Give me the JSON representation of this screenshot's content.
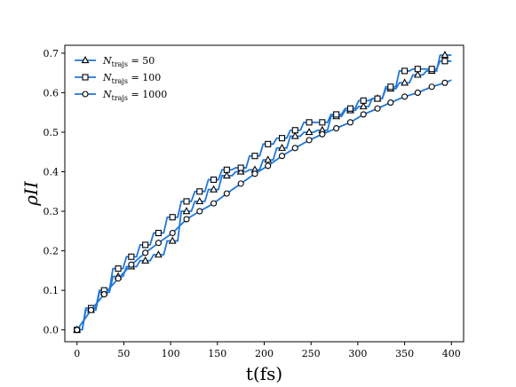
{
  "chart_data": {
    "type": "line",
    "title": "",
    "xlabel": "t(fs)",
    "ylabel": "ρII",
    "xlim": [
      -13,
      413
    ],
    "ylim": [
      -0.03,
      0.72
    ],
    "xticks": [
      0,
      50,
      100,
      150,
      200,
      250,
      300,
      350,
      400
    ],
    "yticks": [
      0.0,
      0.1,
      0.2,
      0.3,
      0.4,
      0.5,
      0.6,
      0.7
    ],
    "xtick_labels": [
      "0",
      "50",
      "100",
      "150",
      "200",
      "250",
      "300",
      "350",
      "400"
    ],
    "ytick_labels": [
      "0.0",
      "0.1",
      "0.2",
      "0.3",
      "0.4",
      "0.5",
      "0.6",
      "0.7"
    ],
    "grid": false,
    "legend_position": "top-left",
    "line_color": "#1f77d8",
    "series": [
      {
        "name": "Ntrajs = 50",
        "legend_label": "N",
        "legend_sub": "trajs",
        "legend_value": "= 50",
        "marker": "triangle",
        "x": [
          0,
          15,
          29,
          44,
          58,
          73,
          87,
          102,
          117,
          131,
          146,
          160,
          175,
          190,
          204,
          219,
          233,
          248,
          262,
          277,
          292,
          306,
          321,
          335,
          350,
          364,
          379,
          393
        ],
        "y": [
          0.0,
          0.05,
          0.095,
          0.135,
          0.16,
          0.175,
          0.19,
          0.225,
          0.3,
          0.325,
          0.355,
          0.39,
          0.4,
          0.405,
          0.43,
          0.46,
          0.49,
          0.5,
          0.505,
          0.54,
          0.555,
          0.565,
          0.585,
          0.61,
          0.625,
          0.645,
          0.655,
          0.695
        ]
      },
      {
        "name": "Ntrajs = 100",
        "legend_label": "N",
        "legend_sub": "trajs",
        "legend_value": "= 100",
        "marker": "square",
        "x": [
          0,
          15,
          29,
          44,
          58,
          73,
          87,
          102,
          117,
          131,
          146,
          160,
          175,
          190,
          204,
          219,
          233,
          248,
          262,
          277,
          292,
          306,
          321,
          335,
          350,
          364,
          379,
          393
        ],
        "y": [
          0.0,
          0.055,
          0.1,
          0.155,
          0.185,
          0.215,
          0.245,
          0.285,
          0.325,
          0.35,
          0.38,
          0.405,
          0.41,
          0.44,
          0.47,
          0.485,
          0.505,
          0.525,
          0.525,
          0.545,
          0.56,
          0.58,
          0.585,
          0.615,
          0.655,
          0.66,
          0.66,
          0.68
        ]
      },
      {
        "name": "Ntrajs = 1000",
        "legend_label": "N",
        "legend_sub": "trajs",
        "legend_value": "= 1000",
        "marker": "circle",
        "x": [
          0,
          15,
          29,
          44,
          58,
          73,
          87,
          102,
          117,
          131,
          146,
          160,
          175,
          190,
          204,
          219,
          233,
          248,
          262,
          277,
          292,
          306,
          321,
          335,
          350,
          364,
          379,
          393
        ],
        "y": [
          0.0,
          0.05,
          0.09,
          0.13,
          0.165,
          0.195,
          0.22,
          0.245,
          0.28,
          0.3,
          0.32,
          0.345,
          0.37,
          0.395,
          0.415,
          0.44,
          0.46,
          0.48,
          0.495,
          0.51,
          0.525,
          0.545,
          0.56,
          0.575,
          0.59,
          0.6,
          0.615,
          0.625
        ]
      }
    ]
  }
}
